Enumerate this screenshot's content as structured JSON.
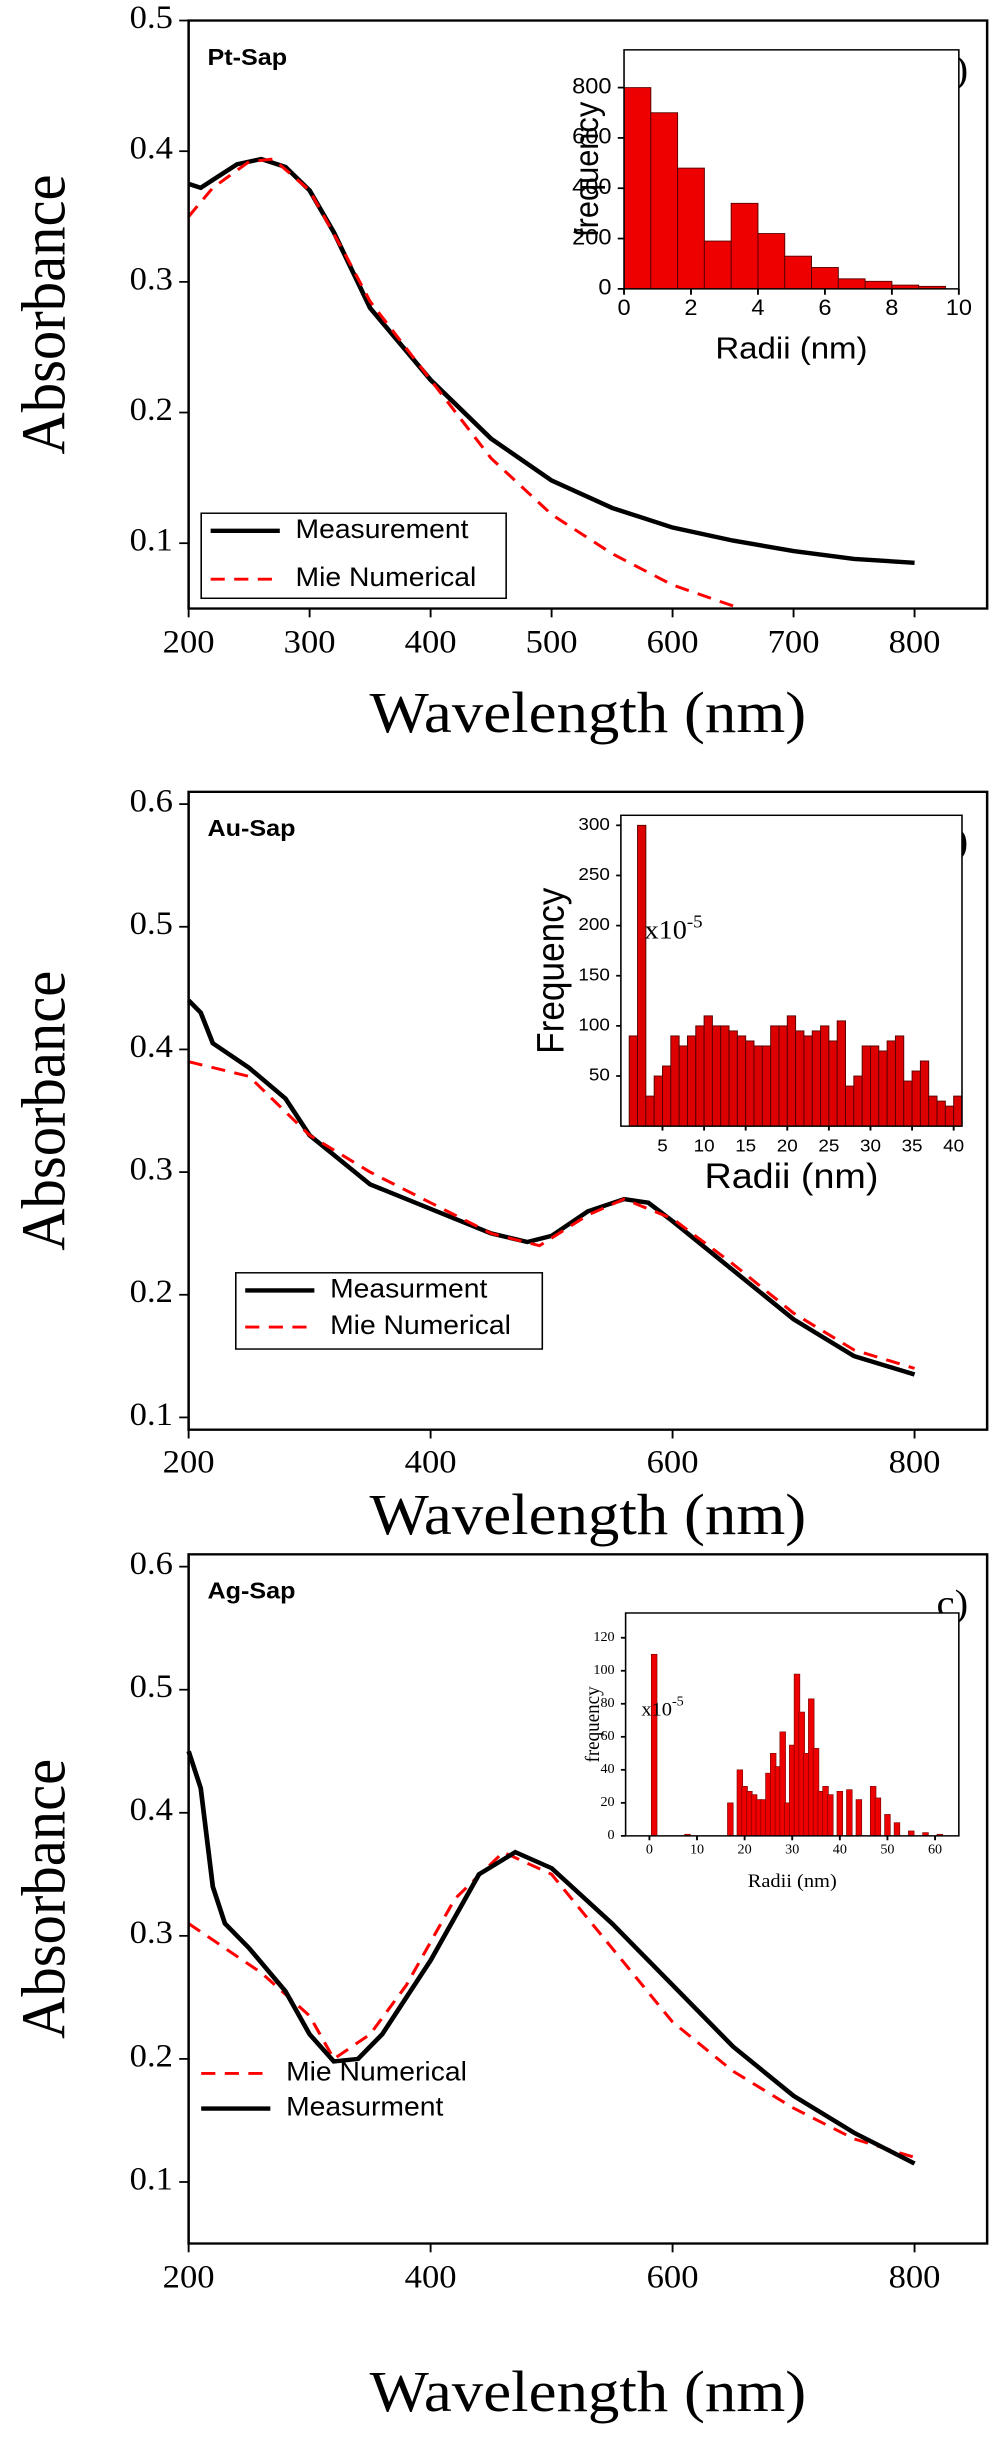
{
  "chart_data": [
    {
      "type": "line",
      "title": "Pt-Sap",
      "annotation": "a)",
      "xlabel": "Wavelength (nm)",
      "ylabel": "Absorbance",
      "xlim": [
        200,
        860
      ],
      "ylim": [
        0.05,
        0.5
      ],
      "xticks": [
        200,
        300,
        400,
        500,
        600,
        700,
        800
      ],
      "yticks": [
        0.1,
        0.2,
        0.3,
        0.4,
        0.5
      ],
      "legend": "lower left",
      "legend_frame": true,
      "series": [
        {
          "name": "Measurement",
          "color": "#000000",
          "linestyle": "solid",
          "x": [
            200,
            210,
            220,
            240,
            260,
            280,
            300,
            320,
            350,
            400,
            450,
            500,
            550,
            600,
            650,
            700,
            750,
            800
          ],
          "values": [
            0.375,
            0.372,
            0.378,
            0.39,
            0.394,
            0.388,
            0.37,
            0.338,
            0.28,
            0.225,
            0.18,
            0.148,
            0.127,
            0.112,
            0.102,
            0.094,
            0.088,
            0.085
          ]
        },
        {
          "name": "Mie Numerical",
          "color": "#ff0000",
          "linestyle": "dashed",
          "x": [
            200,
            220,
            250,
            270,
            300,
            330,
            350,
            400,
            450,
            500,
            550,
            600,
            650
          ],
          "values": [
            0.35,
            0.372,
            0.392,
            0.394,
            0.37,
            0.32,
            0.285,
            0.225,
            0.165,
            0.122,
            0.092,
            0.068,
            0.052
          ]
        }
      ]
    },
    {
      "type": "histogram",
      "xlabel": "Radii (nm)",
      "ylabel": "frequency",
      "color": "#ee0000",
      "xlim": [
        0,
        10
      ],
      "ylim": [
        0,
        950
      ],
      "xticks": [
        0,
        2,
        4,
        6,
        8,
        10
      ],
      "yticks": [
        0,
        200,
        400,
        600,
        800
      ],
      "bins": [
        0,
        0.8,
        1.6,
        2.4,
        3.2,
        4.0,
        4.8,
        5.6,
        6.4,
        7.2,
        8.0,
        8.8,
        9.6
      ],
      "values": [
        800,
        700,
        480,
        190,
        340,
        220,
        130,
        85,
        40,
        30,
        15,
        10
      ]
    },
    {
      "type": "line",
      "title": "Au-Sap",
      "annotation": "b)",
      "xlabel": "Wavelength (nm)",
      "ylabel": "Absorbance",
      "xlim": [
        200,
        860
      ],
      "ylim": [
        0.09,
        0.61
      ],
      "xticks": [
        200,
        400,
        600,
        800
      ],
      "yticks": [
        0.1,
        0.2,
        0.3,
        0.4,
        0.5,
        0.6
      ],
      "legend": "lower left",
      "legend_frame": true,
      "series": [
        {
          "name": "Measurment",
          "color": "#000000",
          "linestyle": "solid",
          "x": [
            200,
            210,
            220,
            250,
            280,
            300,
            350,
            400,
            450,
            480,
            500,
            530,
            560,
            580,
            600,
            650,
            700,
            750,
            800
          ],
          "values": [
            0.44,
            0.43,
            0.405,
            0.385,
            0.36,
            0.33,
            0.29,
            0.27,
            0.25,
            0.243,
            0.248,
            0.268,
            0.278,
            0.275,
            0.26,
            0.22,
            0.18,
            0.15,
            0.135
          ]
        },
        {
          "name": "Mie Numerical",
          "color": "#ff0000",
          "linestyle": "dashed",
          "x": [
            200,
            250,
            300,
            350,
            400,
            450,
            490,
            530,
            560,
            600,
            650,
            700,
            750,
            800
          ],
          "values": [
            0.39,
            0.378,
            0.33,
            0.3,
            0.275,
            0.25,
            0.24,
            0.265,
            0.278,
            0.262,
            0.225,
            0.185,
            0.155,
            0.14
          ]
        }
      ]
    },
    {
      "type": "histogram",
      "xlabel": "Radii (nm)",
      "ylabel": "Frequency",
      "color": "#dd0000",
      "scale_note": "x10",
      "scale_exponent": "-5",
      "xlim": [
        0,
        41
      ],
      "ylim": [
        0,
        310
      ],
      "xticks": [
        5,
        10,
        15,
        20,
        25,
        30,
        35,
        40
      ],
      "yticks": [
        50,
        100,
        150,
        200,
        250,
        300
      ],
      "bins": [
        1,
        2,
        3,
        4,
        5,
        6,
        7,
        8,
        9,
        10,
        11,
        12,
        13,
        14,
        15,
        16,
        17,
        18,
        19,
        20,
        21,
        22,
        23,
        24,
        25,
        26,
        27,
        28,
        29,
        30,
        31,
        32,
        33,
        34,
        35,
        36,
        37,
        38,
        39,
        40,
        41
      ],
      "values": [
        90,
        300,
        30,
        50,
        60,
        90,
        80,
        90,
        100,
        110,
        100,
        100,
        95,
        90,
        85,
        80,
        80,
        100,
        100,
        110,
        95,
        90,
        95,
        100,
        85,
        105,
        40,
        50,
        80,
        80,
        75,
        85,
        90,
        45,
        55,
        65,
        30,
        25,
        20,
        30
      ]
    },
    {
      "type": "line",
      "title": "Ag-Sap",
      "annotation": "c)",
      "xlabel": "Wavelength (nm)",
      "ylabel": "Absorbance",
      "xlim": [
        200,
        860
      ],
      "ylim": [
        0.05,
        0.61
      ],
      "xticks": [
        200,
        400,
        600,
        800
      ],
      "yticks": [
        0.1,
        0.2,
        0.3,
        0.4,
        0.5,
        0.6
      ],
      "legend": "lower left",
      "legend_frame": false,
      "series": [
        {
          "name": "Mie Numerical",
          "color": "#ff0000",
          "linestyle": "dashed",
          "x": [
            200,
            230,
            260,
            300,
            320,
            350,
            380,
            420,
            460,
            500,
            550,
            600,
            650,
            700,
            750,
            800
          ],
          "values": [
            0.31,
            0.29,
            0.27,
            0.235,
            0.2,
            0.22,
            0.26,
            0.33,
            0.368,
            0.35,
            0.29,
            0.23,
            0.19,
            0.16,
            0.135,
            0.12
          ]
        },
        {
          "name": "Measurment",
          "color": "#000000",
          "linestyle": "solid",
          "x": [
            200,
            210,
            220,
            230,
            250,
            280,
            300,
            320,
            340,
            360,
            400,
            440,
            470,
            500,
            550,
            600,
            650,
            700,
            750,
            800
          ],
          "values": [
            0.45,
            0.42,
            0.34,
            0.31,
            0.29,
            0.255,
            0.22,
            0.198,
            0.2,
            0.22,
            0.28,
            0.35,
            0.368,
            0.355,
            0.31,
            0.26,
            0.21,
            0.17,
            0.14,
            0.115
          ]
        }
      ]
    },
    {
      "type": "bar",
      "xlabel": "Radii (nm)",
      "ylabel": "frequency",
      "color": "#ee0000",
      "scale_note": "x10",
      "scale_exponent": "-5",
      "xlim": [
        -5,
        65
      ],
      "ylim": [
        0,
        135
      ],
      "xticks": [
        0,
        10,
        20,
        30,
        40,
        50,
        60
      ],
      "yticks": [
        0,
        20,
        40,
        60,
        80,
        100,
        120
      ],
      "x": [
        1,
        8,
        17,
        19,
        20,
        21,
        22,
        23,
        24,
        25,
        26,
        27,
        28,
        29,
        30,
        31,
        32,
        33,
        34,
        35,
        36,
        37,
        38,
        40,
        42,
        44,
        47,
        48,
        50,
        52,
        55,
        58,
        61
      ],
      "values": [
        110,
        1,
        20,
        40,
        30,
        27,
        25,
        22,
        22,
        38,
        50,
        42,
        63,
        20,
        55,
        98,
        75,
        50,
        83,
        53,
        27,
        30,
        25,
        27,
        28,
        22,
        30,
        23,
        13,
        8,
        3,
        2,
        1
      ]
    }
  ]
}
